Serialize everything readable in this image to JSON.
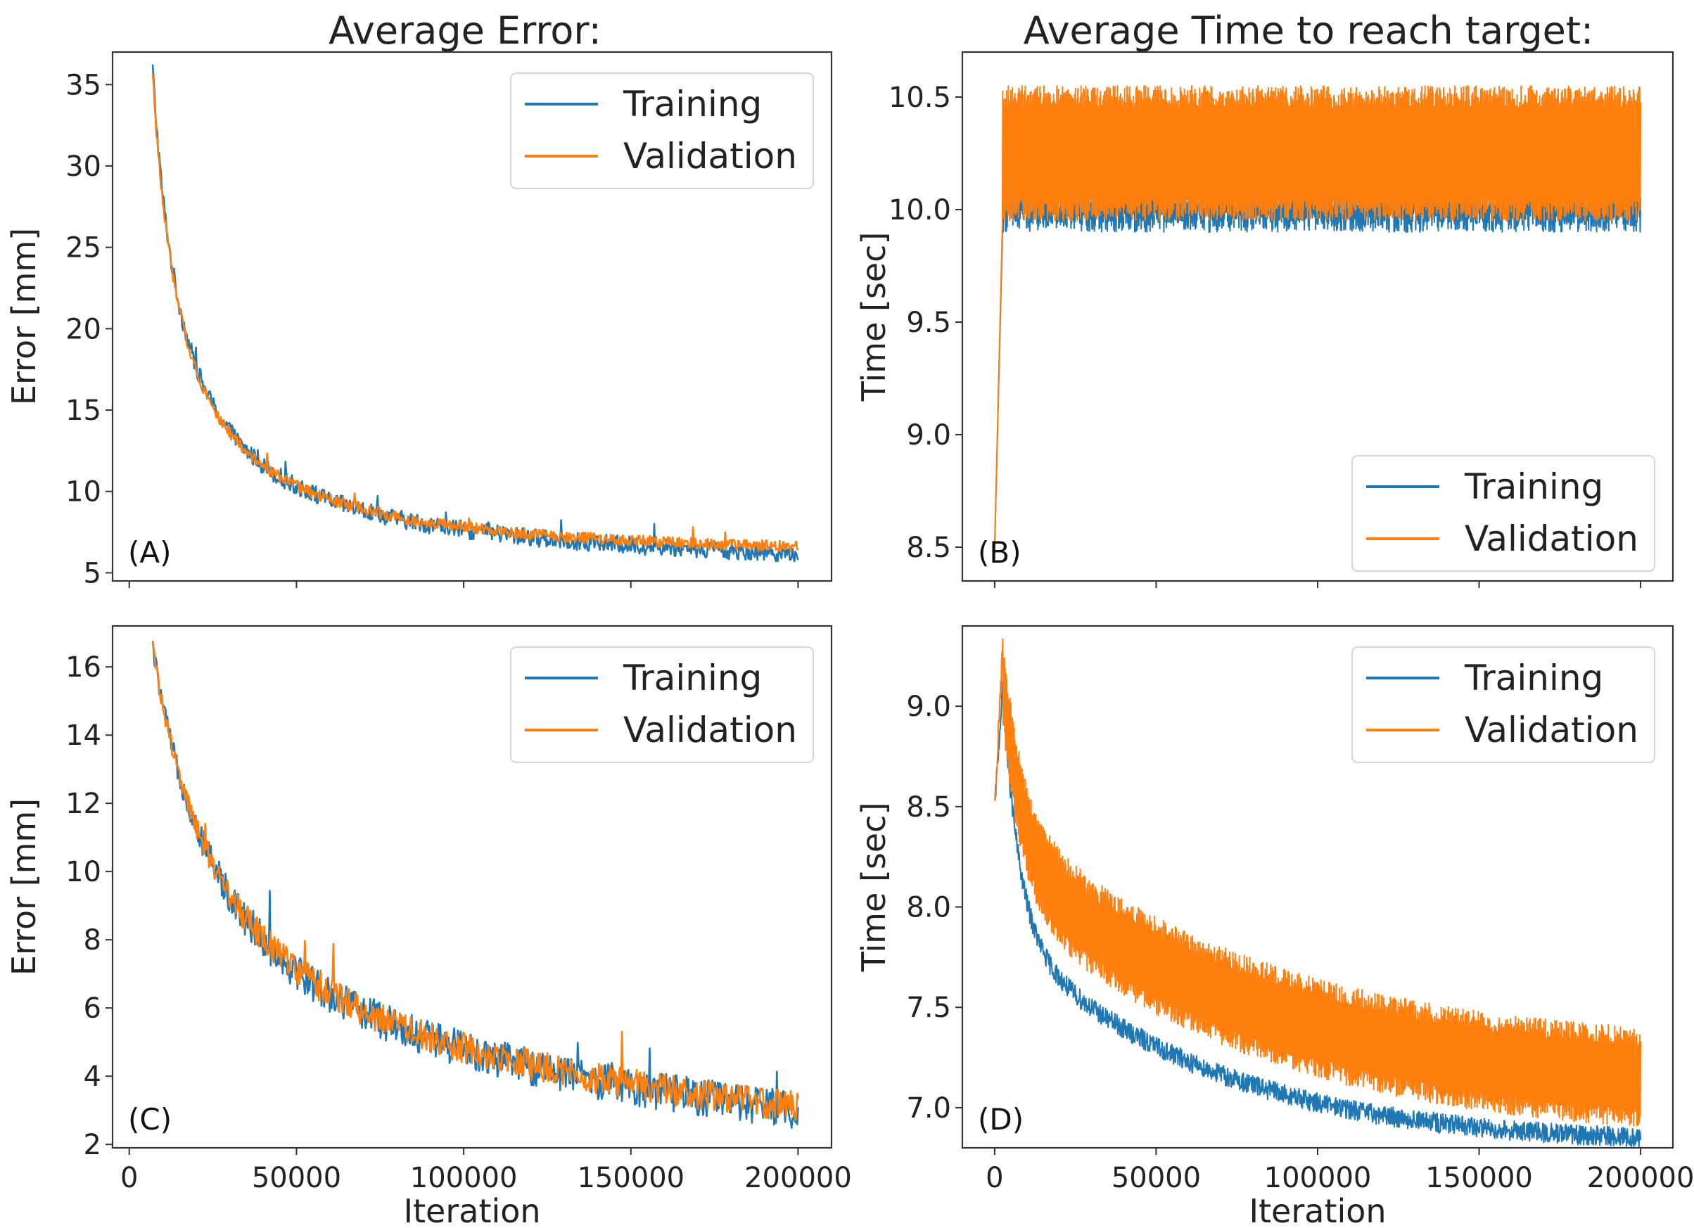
{
  "figure_titles": {
    "left": "Average Error:",
    "right": "Average Time to reach target:"
  },
  "colors": {
    "training": "#1f77b4",
    "validation": "#ff7f0e"
  },
  "chart_data": [
    {
      "id": "A",
      "type": "line",
      "panel_label": "(A)",
      "title": "",
      "xlabel": "",
      "ylabel": "Error [mm]",
      "xlim": [
        -5000,
        210000
      ],
      "ylim": [
        4.5,
        37
      ],
      "xticks": [
        0,
        50000,
        100000,
        150000,
        200000
      ],
      "xtick_labels_shown": false,
      "yticks": [
        5,
        10,
        15,
        20,
        25,
        30,
        35
      ],
      "ytick_labels": [
        "5",
        "10",
        "15",
        "20",
        "25",
        "30",
        "35"
      ],
      "legend": {
        "position": "top-right",
        "entries": [
          "Training",
          "Validation"
        ]
      },
      "x_start": 7000,
      "x_end": 200000,
      "series": [
        {
          "name": "Training",
          "color": "#1f77b4",
          "start": 36,
          "end": 6.2,
          "decay": 9000,
          "floor": 5.0,
          "noise": 0.55
        },
        {
          "name": "Validation",
          "color": "#ff7f0e",
          "start": 35.5,
          "end": 6.6,
          "decay": 9000,
          "floor": 5.0,
          "noise": 0.35
        }
      ]
    },
    {
      "id": "B",
      "type": "line",
      "panel_label": "(B)",
      "title": "",
      "xlabel": "",
      "ylabel": "Time [sec]",
      "xlim": [
        -10000,
        210000
      ],
      "ylim": [
        8.35,
        10.7
      ],
      "xticks": [
        0,
        50000,
        100000,
        150000,
        200000
      ],
      "xtick_labels_shown": false,
      "yticks": [
        8.5,
        9.0,
        9.5,
        10.0,
        10.5
      ],
      "ytick_labels": [
        "8.5",
        "9.0",
        "9.5",
        "10.0",
        "10.5"
      ],
      "legend": {
        "position": "bottom-right",
        "entries": [
          "Training",
          "Validation"
        ]
      },
      "x_start": 0,
      "x_end": 200000,
      "series": [
        {
          "name": "Training",
          "color": "#1f77b4",
          "start": 8.5,
          "plateau_low": 9.95,
          "plateau_high": 10.05,
          "noise": 0.05
        },
        {
          "name": "Validation",
          "color": "#ff7f0e",
          "start": 8.5,
          "plateau_low": 10.0,
          "plateau_high": 10.5,
          "noise": 0.05
        }
      ]
    },
    {
      "id": "C",
      "type": "line",
      "panel_label": "(C)",
      "title": "",
      "xlabel": "Iteration",
      "ylabel": "Error [mm]",
      "xlim": [
        -5000,
        210000
      ],
      "ylim": [
        1.9,
        17.2
      ],
      "xticks": [
        0,
        50000,
        100000,
        150000,
        200000
      ],
      "xtick_labels_shown": true,
      "xtick_labels": [
        "0",
        "50000",
        "100000",
        "150000",
        "200000"
      ],
      "yticks": [
        2,
        4,
        6,
        8,
        10,
        12,
        14,
        16
      ],
      "ytick_labels": [
        "2",
        "4",
        "6",
        "8",
        "10",
        "12",
        "14",
        "16"
      ],
      "legend": {
        "position": "top-right",
        "entries": [
          "Training",
          "Validation"
        ]
      },
      "x_start": 7000,
      "x_end": 200000,
      "series": [
        {
          "name": "Training",
          "color": "#1f77b4",
          "start": 16.6,
          "end": 3.0,
          "decay": 22000,
          "floor": 2.6,
          "noise": 0.55
        },
        {
          "name": "Validation",
          "color": "#ff7f0e",
          "start": 16.6,
          "end": 3.1,
          "decay": 22000,
          "floor": 2.6,
          "noise": 0.45
        }
      ]
    },
    {
      "id": "D",
      "type": "line",
      "panel_label": "(D)",
      "title": "",
      "xlabel": "Iteration",
      "ylabel": "Time [sec]",
      "xlim": [
        -10000,
        210000
      ],
      "ylim": [
        6.8,
        9.4
      ],
      "xticks": [
        0,
        50000,
        100000,
        150000,
        200000
      ],
      "xtick_labels_shown": true,
      "xtick_labels": [
        "0",
        "50000",
        "100000",
        "150000",
        "200000"
      ],
      "yticks": [
        7.0,
        7.5,
        8.0,
        8.5,
        9.0
      ],
      "ytick_labels": [
        "7.0",
        "7.5",
        "8.0",
        "8.5",
        "9.0"
      ],
      "legend": {
        "position": "top-right",
        "entries": [
          "Training",
          "Validation"
        ]
      },
      "x_start": 0,
      "x_end": 200000,
      "series": [
        {
          "name": "Training",
          "color": "#1f77b4",
          "start": 8.5,
          "peak": 9.1,
          "end": 6.85,
          "noise": 0.05
        },
        {
          "name": "Validation",
          "color": "#ff7f0e",
          "start": 8.5,
          "peak": 9.3,
          "end_low": 6.95,
          "end_high": 7.35,
          "noise": 0.05
        }
      ]
    }
  ]
}
